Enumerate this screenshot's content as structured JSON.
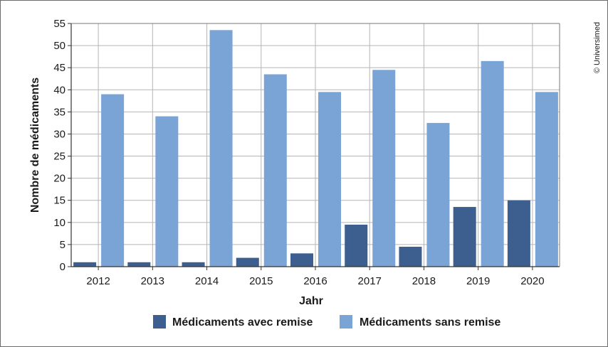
{
  "chart_data": {
    "type": "bar",
    "xlabel": "Jahr",
    "ylabel": "Nombre de médicaments",
    "ylim": [
      0,
      55
    ],
    "yticks": [
      0,
      5,
      10,
      15,
      20,
      25,
      30,
      35,
      40,
      45,
      50,
      55
    ],
    "grid": true,
    "legend_position": "bottom",
    "categories": [
      "2012",
      "2013",
      "2014",
      "2015",
      "2016",
      "2017",
      "2018",
      "2019",
      "2020"
    ],
    "series": [
      {
        "name": "Médicaments avec remise",
        "color": "#3d5f8f",
        "values": [
          1,
          1,
          1,
          2,
          3,
          9.5,
          4.5,
          13.5,
          15
        ]
      },
      {
        "name": "Médicaments sans remise",
        "color": "#7aa3d6",
        "values": [
          39,
          34,
          53.5,
          43.5,
          39.5,
          44.5,
          32.5,
          46.5,
          39.5
        ]
      }
    ]
  },
  "copyright": "© Universimed"
}
